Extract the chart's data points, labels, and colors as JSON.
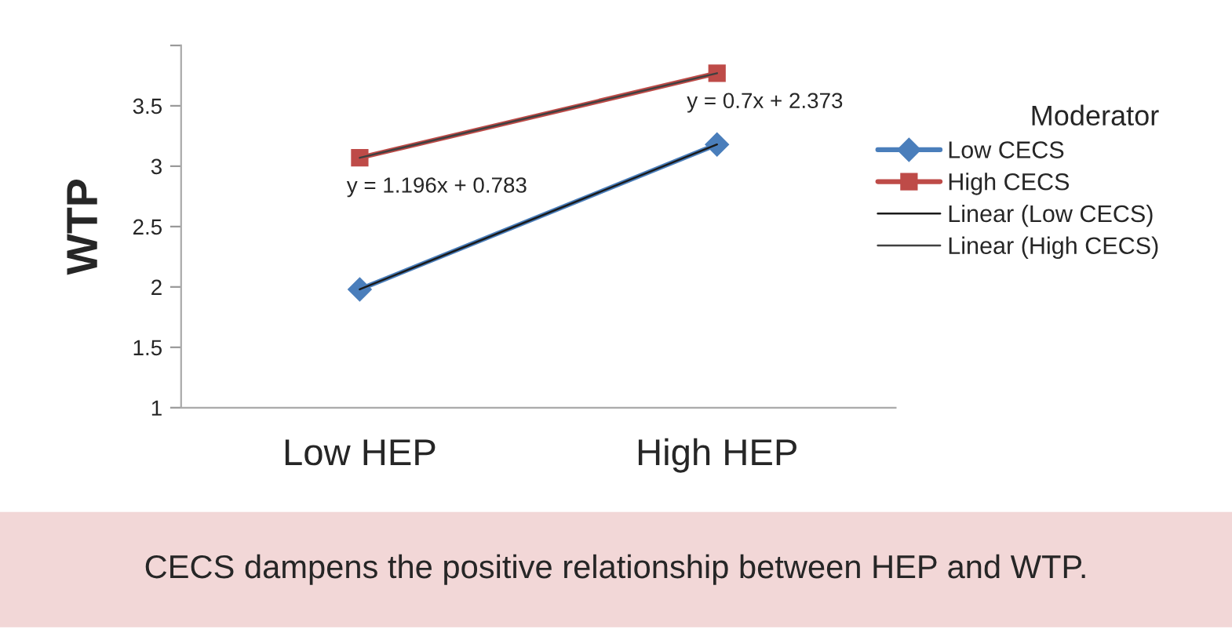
{
  "chart_data": {
    "type": "line",
    "ylabel": "WTP",
    "categories": [
      "Low HEP",
      "High HEP"
    ],
    "series": [
      {
        "name": "Low CECS",
        "color": "#4a7ebb",
        "values": [
          1.98,
          3.18
        ],
        "marker": "diamond"
      },
      {
        "name": "High CECS",
        "color": "#be4b48",
        "values": [
          3.07,
          3.77
        ],
        "marker": "square"
      },
      {
        "name": "Linear (Low CECS)",
        "color": "#1a1a1a",
        "values": [
          1.98,
          3.18
        ],
        "marker": "none"
      },
      {
        "name": "Linear (High CECS)",
        "color": "#404040",
        "values": [
          3.07,
          3.77
        ],
        "marker": "none"
      }
    ],
    "ylim": [
      1,
      4
    ],
    "yticks": [
      1,
      1.5,
      2,
      2.5,
      3,
      3.5,
      {
        "value": 4,
        "label": null
      }
    ],
    "legend": "right",
    "legend_title": "Moderator",
    "grid": false,
    "annotations": [
      {
        "text": "y = 1.196x + 0.783",
        "x": "Low HEP",
        "y": 3.07
      },
      {
        "text": "y = 0.7x + 2.373",
        "x": "High HEP",
        "y": 3.77
      },
      "CECS dampens the positive relationship between HEP and WTP."
    ]
  }
}
